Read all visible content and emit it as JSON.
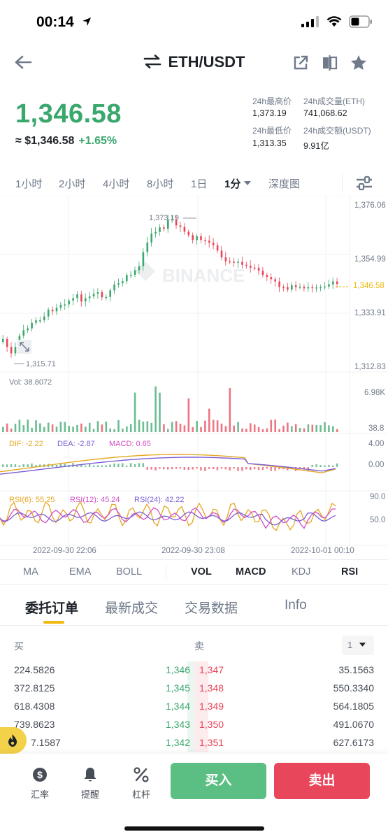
{
  "status": {
    "time": "00:14"
  },
  "header": {
    "pair": "ETH/USDT"
  },
  "price": {
    "last": "1,346.58",
    "usd": "≈ $1,346.58",
    "change": "+1.65%"
  },
  "stats": {
    "high_label": "24h最高价",
    "high_value": "1,373.19",
    "vol_eth_label": "24h成交量(ETH)",
    "vol_eth_value": "741,068.62",
    "low_label": "24h最低价",
    "low_value": "1,313.35",
    "vol_usdt_label": "24h成交额(USDT)",
    "vol_usdt_value": "9.91亿"
  },
  "intervals": [
    "1小时",
    "2小时",
    "4小时",
    "8小时",
    "1日",
    "1分",
    "深度图"
  ],
  "active_interval": "1分",
  "chart": {
    "watermark": "BINANCE",
    "price_axis": [
      "1,376.06",
      "1,354.99",
      "1,333.91",
      "1,312.83"
    ],
    "current_price_tag": "1,346.58",
    "high_marker": "1,373.19",
    "low_marker": "1,315.71",
    "vol_label": "Vol: 38.8072",
    "vol_axis": [
      "6.98K",
      "38.8"
    ],
    "macd_labels": {
      "dif": "DIF: -2.22",
      "dea": "DEA: -2.87",
      "macd": "MACD: 0.65"
    },
    "macd_axis": [
      "4.00",
      "0.00"
    ],
    "rsi_labels": {
      "r6": "RSI(6): 55.25",
      "r12": "RSI(12): 45.24",
      "r24": "RSI(24): 42.22"
    },
    "rsi_axis": [
      "90.0",
      "50.0"
    ],
    "time_axis": [
      "2022-09-30 22:06",
      "2022-09-30 23:08",
      "2022-10-01 00:10"
    ]
  },
  "colors": {
    "up": "#3aa76d",
    "down": "#e8465a",
    "accent": "#f0b90b",
    "dif": "#e5a823",
    "dea": "#7c5fd4",
    "rsi12": "#d24ec8"
  },
  "indicators": {
    "main": [
      "MA",
      "EMA",
      "BOLL"
    ],
    "sub": [
      "VOL",
      "MACD",
      "KDJ",
      "RSI"
    ]
  },
  "book_tabs": [
    "委托订单",
    "最新成交",
    "交易数据",
    "Info"
  ],
  "orderbook": {
    "buy_label": "买",
    "sell_label": "卖",
    "depth_select": "1",
    "rows": [
      {
        "bid_qty": "224.5826",
        "bid_price": "1,346",
        "ask_price": "1,347",
        "ask_qty": "35.1563"
      },
      {
        "bid_qty": "372.8125",
        "bid_price": "1,345",
        "ask_price": "1,348",
        "ask_qty": "550.3340"
      },
      {
        "bid_qty": "618.4308",
        "bid_price": "1,344",
        "ask_price": "1,349",
        "ask_qty": "564.1805"
      },
      {
        "bid_qty": "739.8623",
        "bid_price": "1,343",
        "ask_price": "1,350",
        "ask_qty": "491.0670"
      },
      {
        "bid_qty": "7.1587",
        "bid_price": "1,342",
        "ask_price": "1,351",
        "ask_qty": "627.6173"
      }
    ]
  },
  "bottom_nav": [
    {
      "label": "汇率",
      "icon": "dollar-icon"
    },
    {
      "label": "提醒",
      "icon": "bell-icon"
    },
    {
      "label": "杠杆",
      "icon": "percent-icon"
    }
  ],
  "actions": {
    "buy": "买入",
    "sell": "卖出"
  }
}
